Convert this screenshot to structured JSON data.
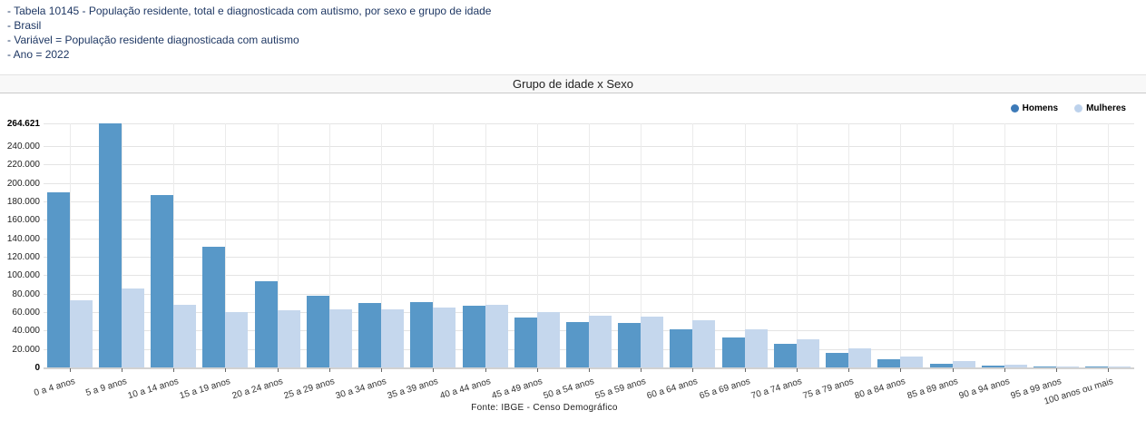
{
  "header": {
    "lines": [
      "- Tabela 10145 - População residente, total e diagnosticada com autismo, por sexo e grupo de idade",
      "- Brasil",
      "- Variável = População residente diagnosticada com autismo",
      "- Ano = 2022"
    ],
    "text_color": "#1f3864"
  },
  "panel": {
    "title": "Grupo de idade x Sexo"
  },
  "chart_data": {
    "type": "bar",
    "title": "Grupo de idade x Sexo",
    "categories": [
      "0 a 4 anos",
      "5 a 9 anos",
      "10 a 14 anos",
      "15 a 19 anos",
      "20 a 24 anos",
      "25 a 29 anos",
      "30 a 34 anos",
      "35 a 39 anos",
      "40 a 44 anos",
      "45 a 49 anos",
      "50 a 54 anos",
      "55 a 59 anos",
      "60 a 64 anos",
      "65 a 69 anos",
      "70 a 74 anos",
      "75 a 79 anos",
      "80 a 84 anos",
      "85 a 89 anos",
      "90 a 94 anos",
      "95 a 99 anos",
      "100 anos ou mais"
    ],
    "series": [
      {
        "name": "Homens",
        "color": "#5898c8",
        "legend_dot_color": "#3d7ab8",
        "values": [
          190000,
          264621,
          187000,
          130500,
          93000,
          78000,
          69500,
          70500,
          67000,
          54500,
          49500,
          48000,
          41000,
          32500,
          26000,
          15500,
          9000,
          4100,
          1500,
          600,
          300
        ]
      },
      {
        "name": "Mulheres",
        "color": "#c5d7ed",
        "legend_dot_color": "#bdd2ec",
        "values": [
          73000,
          86000,
          68000,
          60000,
          62000,
          62500,
          63000,
          65000,
          68000,
          60500,
          56500,
          55000,
          51000,
          41000,
          31000,
          21000,
          12000,
          6800,
          2600,
          1200,
          500
        ]
      }
    ],
    "ylim": [
      0,
      264621
    ],
    "y_ticks": [
      0,
      20000,
      40000,
      60000,
      80000,
      100000,
      120000,
      140000,
      160000,
      180000,
      200000,
      220000,
      240000,
      264621
    ],
    "y_tick_interval": 20000,
    "number_format": "pt-BR (dot thousands separator)",
    "grid": true,
    "legend_position": "top-right",
    "xlabel": "",
    "ylabel": ""
  },
  "footer": {
    "source": "Fonte: IBGE - Censo Demográfico"
  }
}
